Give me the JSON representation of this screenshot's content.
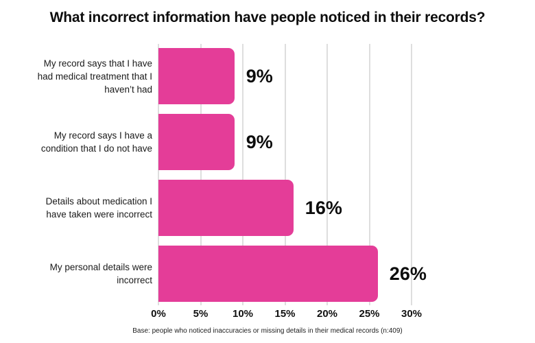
{
  "title": "What incorrect information have people noticed in their records?",
  "footnote": "Base: people who noticed inaccuracies or missing details in their medical records (n:409)",
  "colors": {
    "bar": "#e43d98",
    "gridline": "#dedede",
    "text": "#0d0d0d"
  },
  "chart_data": {
    "type": "bar",
    "orientation": "horizontal",
    "title": "What incorrect information have people noticed in their records?",
    "categories": [
      "My record says that I have had medical treatment that I haven’t had",
      "My record says I have a condition that I do not have",
      "Details about medication I have taken were incorrect",
      "My personal details were incorrect"
    ],
    "category_lines": [
      [
        "My record says that I have",
        "had medical treatment that I",
        "haven’t had"
      ],
      [
        "My record says I have a",
        "condition that I do not have"
      ],
      [
        "Details about medication I",
        "have taken were incorrect"
      ],
      [
        "My personal details were",
        "incorrect"
      ]
    ],
    "values": [
      9,
      9,
      16,
      26
    ],
    "value_labels": [
      "9%",
      "9%",
      "16%",
      "26%"
    ],
    "x_tick_values": [
      0,
      5,
      10,
      15,
      20,
      25,
      30
    ],
    "x_tick_labels": [
      "0%",
      "5%",
      "10%",
      "15%",
      "20%",
      "25%",
      "30%"
    ],
    "xlim": [
      0,
      30
    ],
    "grid": "vertical",
    "legend": "none",
    "xlabel": "",
    "ylabel": ""
  }
}
